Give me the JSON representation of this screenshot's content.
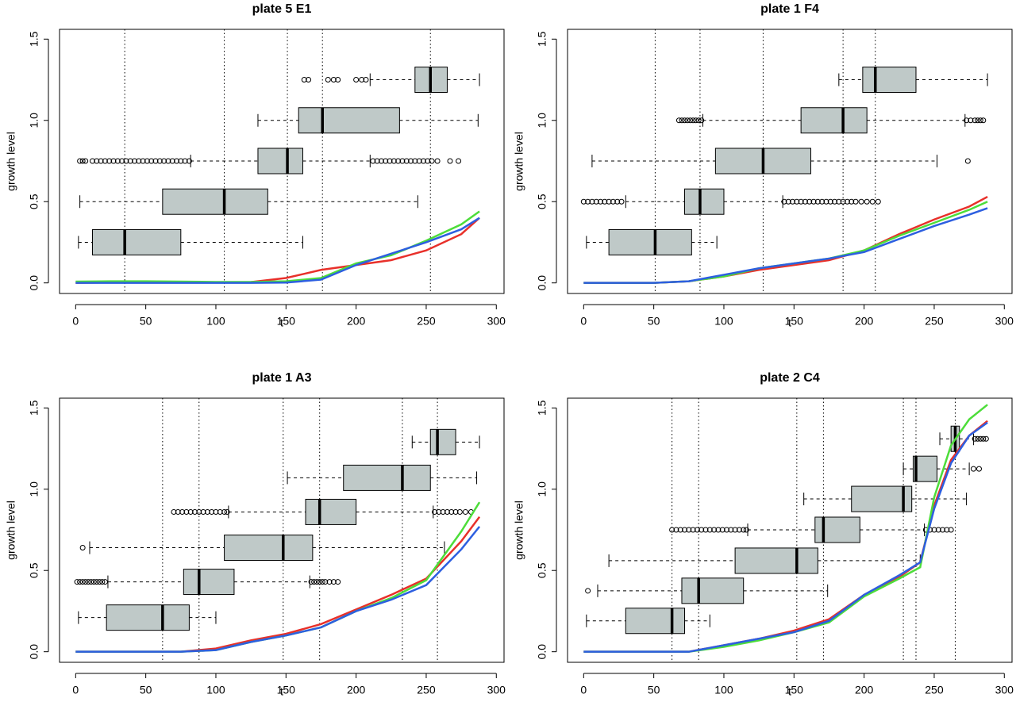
{
  "chart_data": [
    {
      "type": "boxplot-line",
      "title": "plate 5 E1",
      "x_label": "t",
      "y_label": "growth level",
      "xlim": [
        -11.5,
        305.5
      ],
      "ylim": [
        -0.065,
        1.56
      ],
      "xticks": [
        0,
        50,
        100,
        150,
        200,
        250,
        300
      ],
      "yticks": [
        {
          "value": 0,
          "label": "0.0"
        },
        0.5,
        {
          "value": 1,
          "label": "1.0"
        },
        1.5
      ],
      "box_color": "#bfc9c8",
      "boxes": [
        {
          "y": 0.25,
          "whisker_low": 2,
          "q1": 12,
          "median": 35,
          "q3": 75,
          "whisker_high": 162
        },
        {
          "y": 0.5,
          "whisker_low": 3,
          "q1": 62,
          "median": 106,
          "q3": 137,
          "whisker_high": 244
        },
        {
          "y": 0.75,
          "whisker_low": 82,
          "q1": 130,
          "median": 151,
          "q3": 162,
          "whisker_high": 210,
          "outliers": [
            3,
            5,
            7,
            12,
            15,
            18,
            21,
            24,
            27,
            30,
            33,
            36,
            39,
            42,
            45,
            48,
            51,
            54,
            57,
            60,
            63,
            66,
            69,
            72,
            75,
            78,
            81,
            212,
            215,
            218,
            221,
            224,
            227,
            230,
            233,
            236,
            239,
            242,
            245,
            248,
            251,
            254,
            258,
            267,
            273
          ]
        },
        {
          "y": 1.0,
          "whisker_low": 130,
          "q1": 159,
          "median": 176,
          "q3": 231,
          "whisker_high": 287
        },
        {
          "y": 1.25,
          "whisker_low": 210,
          "q1": 242,
          "median": 253,
          "q3": 265,
          "whisker_high": 288,
          "outliers": [
            163,
            166,
            180,
            184,
            187,
            200,
            204,
            207
          ]
        }
      ],
      "x": [
        0,
        25,
        50,
        75,
        100,
        125,
        150,
        175,
        200,
        225,
        250,
        275,
        288
      ],
      "series": [
        {
          "color": "#e8302a",
          "values": [
            0,
            0.003,
            0.002,
            0.002,
            0.002,
            0.005,
            0.03,
            0.08,
            0.11,
            0.14,
            0.2,
            0.3,
            0.4
          ]
        },
        {
          "color": "#4ddd3a",
          "values": [
            0.008,
            0.01,
            0.01,
            0.008,
            0.006,
            0.006,
            0.01,
            0.03,
            0.12,
            0.17,
            0.26,
            0.36,
            0.44
          ]
        },
        {
          "color": "#2d5fe0",
          "values": [
            0,
            0,
            0,
            0,
            0,
            0,
            0.002,
            0.02,
            0.11,
            0.18,
            0.25,
            0.33,
            0.4
          ]
        }
      ]
    },
    {
      "type": "boxplot-line",
      "title": "plate 1 F4",
      "x_label": "t",
      "y_label": "growth level",
      "xlim": [
        -11.5,
        305.5
      ],
      "ylim": [
        -0.065,
        1.56
      ],
      "xticks": [
        0,
        50,
        100,
        150,
        200,
        250,
        300
      ],
      "yticks": [
        {
          "value": 0,
          "label": "0.0"
        },
        0.5,
        {
          "value": 1,
          "label": "1.0"
        },
        1.5
      ],
      "box_color": "#bfc9c8",
      "boxes": [
        {
          "y": 0.25,
          "whisker_low": 2,
          "q1": 18,
          "median": 51,
          "q3": 77,
          "whisker_high": 95
        },
        {
          "y": 0.5,
          "whisker_low": 30,
          "q1": 72,
          "median": 83,
          "q3": 100,
          "whisker_high": 142,
          "outliers": [
            0,
            3,
            6,
            9,
            12,
            15,
            18,
            21,
            24,
            27,
            143,
            146,
            149,
            152,
            155,
            158,
            161,
            164,
            167,
            170,
            173,
            176,
            179,
            182,
            185,
            188,
            191,
            194,
            198,
            202,
            206,
            210
          ]
        },
        {
          "y": 0.75,
          "whisker_low": 6,
          "q1": 94,
          "median": 128,
          "q3": 162,
          "whisker_high": 252,
          "outliers": [
            274
          ]
        },
        {
          "y": 1.0,
          "whisker_low": 85,
          "q1": 155,
          "median": 185,
          "q3": 202,
          "whisker_high": 272,
          "outliers": [
            68,
            70,
            72,
            74,
            76,
            78,
            80,
            82,
            84,
            273,
            276,
            279,
            281,
            283,
            285
          ]
        },
        {
          "y": 1.25,
          "whisker_low": 182,
          "q1": 199,
          "median": 208,
          "q3": 237,
          "whisker_high": 288
        }
      ],
      "x": [
        0,
        25,
        50,
        75,
        100,
        125,
        150,
        175,
        200,
        225,
        250,
        275,
        288
      ],
      "series": [
        {
          "color": "#e8302a",
          "values": [
            0,
            0,
            0,
            0.01,
            0.04,
            0.08,
            0.11,
            0.14,
            0.2,
            0.3,
            0.39,
            0.47,
            0.53
          ]
        },
        {
          "color": "#4ddd3a",
          "values": [
            0,
            0,
            0,
            0.01,
            0.04,
            0.09,
            0.12,
            0.15,
            0.2,
            0.29,
            0.37,
            0.45,
            0.5
          ]
        },
        {
          "color": "#2d5fe0",
          "values": [
            0,
            0,
            0,
            0.01,
            0.05,
            0.09,
            0.12,
            0.15,
            0.19,
            0.27,
            0.35,
            0.42,
            0.46
          ]
        }
      ]
    },
    {
      "type": "boxplot-line",
      "title": "plate 1 A3",
      "x_label": "t",
      "y_label": "growth level",
      "xlim": [
        -11.5,
        305.5
      ],
      "ylim": [
        -0.065,
        1.56
      ],
      "xticks": [
        0,
        50,
        100,
        150,
        200,
        250,
        300
      ],
      "yticks": [
        {
          "value": 0,
          "label": "0.0"
        },
        0.5,
        {
          "value": 1,
          "label": "1.0"
        },
        1.5
      ],
      "box_color": "#bfc9c8",
      "boxes": [
        {
          "y": 0.21,
          "whisker_low": 2,
          "q1": 22,
          "median": 62,
          "q3": 81,
          "whisker_high": 100
        },
        {
          "y": 0.43,
          "whisker_low": 23,
          "q1": 77,
          "median": 88,
          "q3": 113,
          "whisker_high": 167,
          "outliers": [
            1,
            3,
            5,
            7,
            9,
            11,
            13,
            15,
            17,
            19,
            21,
            168,
            170,
            172,
            174,
            176,
            178,
            181,
            184,
            187
          ]
        },
        {
          "y": 0.64,
          "whisker_low": 10,
          "q1": 106,
          "median": 148,
          "q3": 169,
          "whisker_high": 263,
          "outliers": [
            5
          ]
        },
        {
          "y": 0.86,
          "whisker_low": 109,
          "q1": 164,
          "median": 174,
          "q3": 200,
          "whisker_high": 255,
          "outliers": [
            70,
            73,
            76,
            79,
            82,
            85,
            88,
            91,
            94,
            97,
            100,
            103,
            106,
            108,
            256,
            259,
            262,
            265,
            268,
            271,
            274,
            278,
            282
          ]
        },
        {
          "y": 1.07,
          "whisker_low": 151,
          "q1": 191,
          "median": 233,
          "q3": 253,
          "whisker_high": 286
        },
        {
          "y": 1.29,
          "whisker_low": 240,
          "q1": 253,
          "median": 258,
          "q3": 271,
          "whisker_high": 288
        }
      ],
      "x": [
        0,
        25,
        50,
        75,
        100,
        125,
        150,
        175,
        200,
        225,
        250,
        275,
        288
      ],
      "series": [
        {
          "color": "#e8302a",
          "values": [
            0,
            0,
            0,
            0,
            0.02,
            0.07,
            0.11,
            0.17,
            0.26,
            0.35,
            0.45,
            0.68,
            0.83
          ]
        },
        {
          "color": "#4ddd3a",
          "values": [
            0,
            0,
            0,
            0,
            0.01,
            0.06,
            0.1,
            0.15,
            0.25,
            0.33,
            0.44,
            0.74,
            0.92
          ]
        },
        {
          "color": "#2d5fe0",
          "values": [
            0,
            0,
            0,
            0,
            0.01,
            0.06,
            0.1,
            0.15,
            0.25,
            0.32,
            0.41,
            0.63,
            0.77
          ]
        }
      ]
    },
    {
      "type": "boxplot-line",
      "title": "plate 2 C4",
      "x_label": "t",
      "y_label": "growth level",
      "xlim": [
        -11.5,
        305.5
      ],
      "ylim": [
        -0.065,
        1.56
      ],
      "xticks": [
        0,
        50,
        100,
        150,
        200,
        250,
        300
      ],
      "yticks": [
        {
          "value": 0,
          "label": "0.0"
        },
        0.5,
        {
          "value": 1,
          "label": "1.0"
        },
        1.5
      ],
      "box_color": "#bfc9c8",
      "boxes": [
        {
          "y": 0.19,
          "whisker_low": 2,
          "q1": 30,
          "median": 63,
          "q3": 72,
          "whisker_high": 90
        },
        {
          "y": 0.375,
          "whisker_low": 10,
          "q1": 70,
          "median": 82,
          "q3": 114,
          "whisker_high": 174,
          "outliers": [
            3
          ]
        },
        {
          "y": 0.56,
          "whisker_low": 18,
          "q1": 108,
          "median": 152,
          "q3": 167,
          "whisker_high": 240
        },
        {
          "y": 0.75,
          "whisker_low": 117,
          "q1": 165,
          "median": 171,
          "q3": 197,
          "whisker_high": 243,
          "outliers": [
            63,
            66,
            69,
            72,
            75,
            78,
            81,
            84,
            87,
            90,
            93,
            96,
            99,
            102,
            105,
            108,
            111,
            114,
            116,
            244,
            247,
            250,
            253,
            256,
            259,
            262
          ]
        },
        {
          "y": 0.94,
          "whisker_low": 157,
          "q1": 191,
          "median": 228,
          "q3": 234,
          "whisker_high": 273
        },
        {
          "y": 1.125,
          "whisker_low": 228,
          "q1": 235,
          "median": 237,
          "q3": 252,
          "whisker_high": 275,
          "outliers": [
            278,
            282
          ]
        },
        {
          "y": 1.31,
          "whisker_low": 254,
          "q1": 262,
          "median": 265,
          "q3": 268,
          "whisker_high": 278,
          "outliers": [
            279,
            281,
            283,
            285,
            287
          ]
        }
      ],
      "x": [
        0,
        25,
        50,
        75,
        100,
        125,
        150,
        175,
        200,
        225,
        240,
        250,
        262,
        275,
        288
      ],
      "series": [
        {
          "color": "#e8302a",
          "values": [
            0,
            0,
            0,
            0,
            0.04,
            0.08,
            0.13,
            0.2,
            0.35,
            0.46,
            0.55,
            0.9,
            1.18,
            1.33,
            1.42
          ]
        },
        {
          "color": "#4ddd3a",
          "values": [
            0,
            0,
            0,
            0,
            0.03,
            0.07,
            0.12,
            0.18,
            0.34,
            0.45,
            0.52,
            0.95,
            1.27,
            1.43,
            1.52
          ]
        },
        {
          "color": "#2d5fe0",
          "values": [
            0,
            0,
            0,
            0,
            0.04,
            0.08,
            0.12,
            0.19,
            0.35,
            0.47,
            0.55,
            0.88,
            1.16,
            1.33,
            1.41
          ]
        }
      ]
    }
  ]
}
